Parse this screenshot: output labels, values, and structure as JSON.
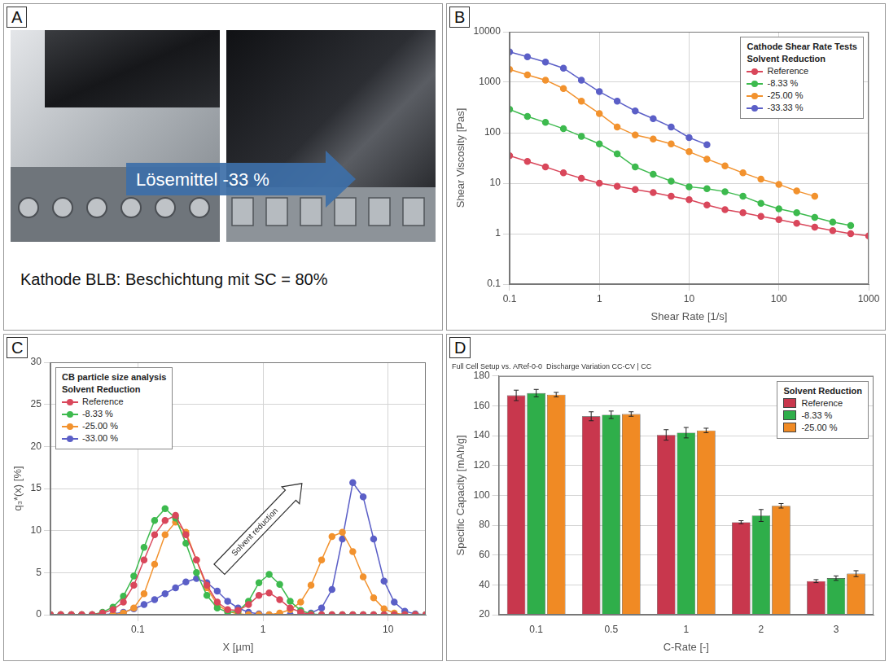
{
  "photo_panel": {
    "panel": "A",
    "arrow_label": "Lösemittel -33 %",
    "caption": "Kathode BLB: Beschichtung mit SC = 80%"
  },
  "chart_data": [
    {
      "panel": "B",
      "type": "line",
      "marker": "circle",
      "log": true,
      "grid": true,
      "legend": "top-right",
      "legend_title": [
        "Cathode Shear Rate Tests",
        "Solvent Reduction"
      ],
      "x_label": "Shear Rate [1/s]",
      "y_label": "Shear Viscosity [Pas]",
      "x": [
        0.1,
        0.158,
        0.251,
        0.398,
        0.631,
        1,
        1.58,
        2.51,
        3.98,
        6.31,
        10,
        15.8,
        25.1,
        39.8,
        63.1,
        100,
        158,
        251,
        398,
        631,
        1000
      ],
      "xlim": [
        0.1,
        1000
      ],
      "xticks": [
        0.1,
        1,
        10,
        100,
        1000
      ],
      "ylim": [
        0.1,
        10000
      ],
      "yticks": [
        0.1,
        1,
        10,
        100,
        1000,
        10000
      ],
      "series": [
        {
          "name": "Reference",
          "color": "#d9475b",
          "values": [
            35,
            27,
            21,
            16,
            12.5,
            10,
            8.7,
            7.5,
            6.5,
            5.5,
            4.7,
            3.7,
            3.0,
            2.6,
            2.2,
            1.9,
            1.6,
            1.35,
            1.15,
            1.0,
            0.9
          ]
        },
        {
          "name": "-8.33 %",
          "color": "#3dba4e",
          "values": [
            290,
            210,
            160,
            120,
            85,
            60,
            38,
            21,
            15,
            11,
            8.5,
            7.8,
            6.8,
            5.5,
            4.0,
            3.1,
            2.6,
            2.1,
            1.7,
            1.45,
            null
          ]
        },
        {
          "name": "-25.00 %",
          "color": "#f2922e",
          "values": [
            1800,
            1400,
            1100,
            750,
            420,
            240,
            130,
            90,
            75,
            60,
            42,
            30,
            22,
            16,
            12,
            9.5,
            7,
            5.5,
            null,
            null,
            null
          ]
        },
        {
          "name": "-33.33 %",
          "color": "#5b5fc7",
          "values": [
            4000,
            3200,
            2500,
            1900,
            1100,
            650,
            420,
            270,
            190,
            130,
            80,
            58,
            null,
            null,
            null,
            null,
            null,
            null,
            null,
            null,
            null
          ]
        }
      ]
    },
    {
      "panel": "C",
      "type": "line",
      "marker": "circle",
      "log": "x",
      "grid": true,
      "legend": "top-left",
      "legend_title": [
        "CB particle size analysis",
        "Solvent Reduction"
      ],
      "annotation": "Solvent reduction",
      "x_label": "X [µm]",
      "y_label": "q₃*(x) [%]",
      "x": [
        0.02,
        0.0242,
        0.0294,
        0.0356,
        0.0431,
        0.0522,
        0.0632,
        0.0766,
        0.0928,
        0.112,
        0.136,
        0.165,
        0.2,
        0.242,
        0.294,
        0.356,
        0.431,
        0.522,
        0.632,
        0.766,
        0.928,
        1.12,
        1.36,
        1.65,
        2.0,
        2.42,
        2.94,
        3.56,
        4.31,
        5.22,
        6.32,
        7.66,
        9.28,
        11.2,
        13.6,
        16.5,
        20
      ],
      "xlim": [
        0.02,
        20
      ],
      "xticks": [
        0.1,
        1,
        10
      ],
      "ylim": [
        0,
        30
      ],
      "yticks": [
        0,
        5,
        10,
        15,
        20,
        25,
        30
      ],
      "series": [
        {
          "name": "Reference",
          "color": "#d9475b",
          "values": [
            0,
            0,
            0,
            0,
            0,
            0.2,
            0.6,
            1.5,
            3.5,
            6.5,
            9.5,
            11.2,
            11.8,
            9.5,
            6.5,
            3.5,
            1.5,
            0.6,
            0.5,
            1.2,
            2.3,
            2.6,
            1.8,
            0.8,
            0.3,
            0,
            0,
            0,
            0,
            0,
            0,
            0,
            0,
            0,
            0,
            0,
            0
          ]
        },
        {
          "name": "-8.33 %",
          "color": "#3dba4e",
          "values": [
            0,
            0,
            0,
            0,
            0,
            0.3,
            0.9,
            2.2,
            4.6,
            8,
            11.2,
            12.6,
            11.5,
            8.5,
            5,
            2.3,
            0.8,
            0.3,
            0.4,
            1.6,
            3.8,
            4.8,
            3.6,
            1.6,
            0.5,
            0.1,
            0,
            0,
            0,
            0,
            0,
            0,
            0,
            0,
            0,
            0,
            0
          ]
        },
        {
          "name": "-25.00 %",
          "color": "#f2922e",
          "values": [
            0,
            0,
            0,
            0,
            0,
            0,
            0,
            0.2,
            0.8,
            2.5,
            6,
            9.5,
            11,
            9.8,
            6.5,
            3.2,
            1.2,
            0.4,
            0.1,
            0,
            0,
            0,
            0.2,
            0.6,
            1.5,
            3.5,
            6.5,
            9.3,
            9.8,
            7.5,
            4.5,
            2,
            0.7,
            0.2,
            0,
            0,
            0
          ]
        },
        {
          "name": "-33.00 %",
          "color": "#5b5fc7",
          "values": [
            0,
            0,
            0,
            0,
            0,
            0,
            0.1,
            0.3,
            0.7,
            1.2,
            1.8,
            2.5,
            3.2,
            3.9,
            4.3,
            3.8,
            2.8,
            1.6,
            0.8,
            0.3,
            0.1,
            0,
            0,
            0,
            0,
            0.2,
            0.8,
            3,
            9,
            15.7,
            14,
            9,
            4,
            1.5,
            0.4,
            0.1,
            0
          ]
        }
      ]
    },
    {
      "panel": "D",
      "type": "bar",
      "grid": true,
      "title": "Full Cell Setup vs. ARef-0-0  Discharge Variation CC-CV | CC",
      "legend": "top-right",
      "legend_title": [
        "Solvent Reduction"
      ],
      "x_label": "C-Rate [-]",
      "y_label": "Specific Capacity [mAh/g]",
      "categories": [
        "0.1",
        "0.5",
        "1",
        "2",
        "3"
      ],
      "ylim": [
        20,
        180
      ],
      "yticks": [
        20,
        40,
        60,
        80,
        100,
        120,
        140,
        160,
        180
      ],
      "series": [
        {
          "name": "Reference",
          "color": "#c8374d",
          "values": [
            167,
            153,
            140.5,
            82,
            42.5
          ],
          "errors": [
            3.5,
            3,
            3.5,
            1,
            1
          ]
        },
        {
          "name": "-8.33 %",
          "color": "#2fae4a",
          "values": [
            168.5,
            154,
            142,
            86.5,
            44.5
          ],
          "errors": [
            2.5,
            2.5,
            3.5,
            4,
            1.5
          ]
        },
        {
          "name": "-25.00 %",
          "color": "#f08a24",
          "values": [
            167.5,
            154.5,
            143.5,
            93,
            47.5
          ],
          "errors": [
            1.5,
            1.5,
            1.5,
            1.5,
            2
          ]
        }
      ]
    }
  ]
}
